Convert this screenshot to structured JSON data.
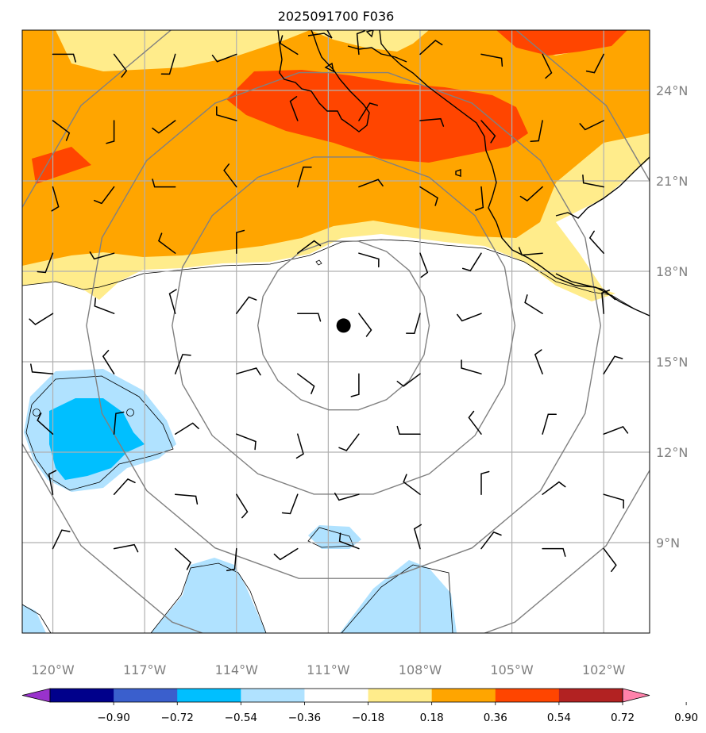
{
  "title": "2025091700 F036",
  "map": {
    "lon_range": [
      -121.0,
      -100.5
    ],
    "lat_range": [
      6.0,
      26.0
    ],
    "lon_ticks": [
      -120,
      -117,
      -114,
      -111,
      -108,
      -105,
      -102
    ],
    "lat_ticks": [
      9,
      12,
      15,
      18,
      21,
      24
    ],
    "lon_tick_labels": [
      "120°W",
      "117°W",
      "114°W",
      "111°W",
      "108°W",
      "105°W",
      "102°W"
    ],
    "lat_tick_labels": [
      "9°N",
      "12°N",
      "15°N",
      "18°N",
      "21°N",
      "24°N"
    ],
    "storm_center": {
      "lon": -110.5,
      "lat": 16.2
    },
    "ring_radii_deg": [
      2.8,
      5.6,
      8.4,
      11.2
    ]
  },
  "colorbar": {
    "labels": [
      "−0.90",
      "−0.72",
      "−0.54",
      "−0.36",
      "−0.18",
      "0.18",
      "0.36",
      "0.54",
      "0.72",
      "0.90"
    ],
    "colors": [
      "#9932cc",
      "#00008b",
      "#3a5fcd",
      "#00bfff",
      "#b0e2ff",
      "#ffffff",
      "#ffec8b",
      "#ffa500",
      "#ff4500",
      "#b22222",
      "#ff82ab"
    ]
  },
  "legend_colors": {
    "grid": "#b0b0b0",
    "rings": "#808080",
    "coast": "#000000"
  },
  "icons": {
    "storm": "filled-circle",
    "barb": "wind-barb"
  }
}
